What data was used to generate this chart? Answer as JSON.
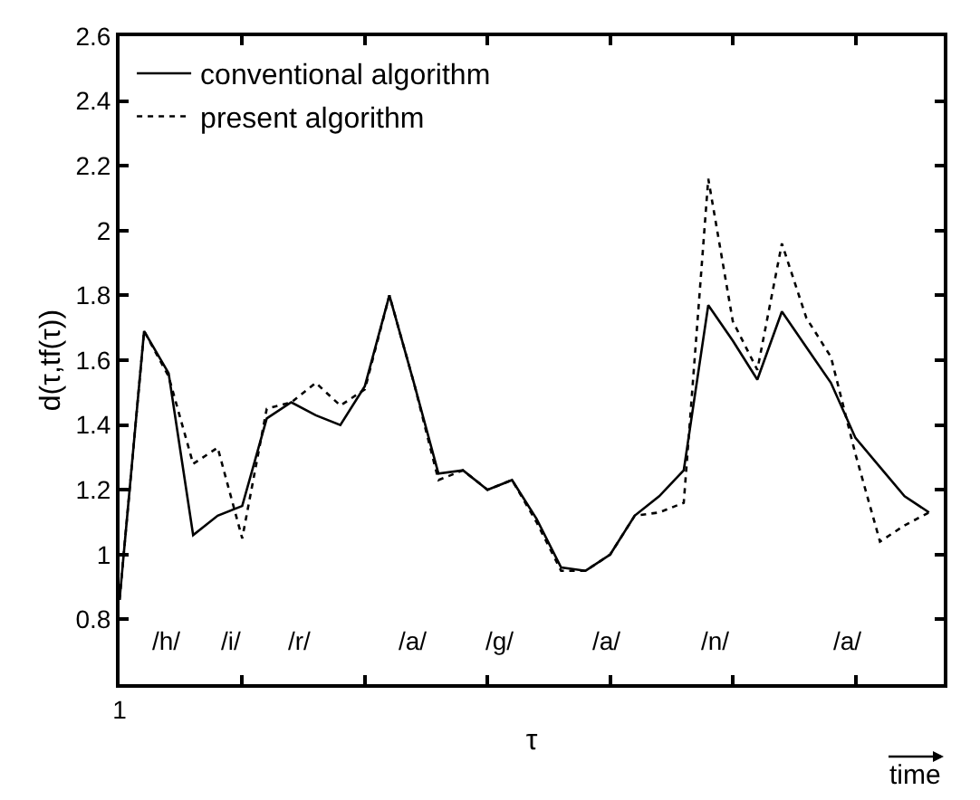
{
  "chart_data": {
    "type": "line",
    "xlabel": "τ",
    "ylabel": "d(τ,tf(τ))",
    "categories": [
      "1",
      null,
      null,
      null,
      null,
      null,
      null,
      null,
      null,
      null,
      null,
      null,
      null,
      null,
      null,
      null,
      null,
      null,
      null,
      null,
      null,
      null,
      null,
      null,
      null,
      null,
      null,
      null,
      null,
      null,
      null,
      null,
      null,
      null
    ],
    "series": [
      {
        "name": "conventional algorithm",
        "color": "#000000",
        "line_style": "solid",
        "values": [
          0.86,
          1.69,
          1.56,
          1.06,
          1.12,
          1.15,
          1.42,
          1.47,
          1.43,
          1.4,
          1.52,
          1.8,
          1.53,
          1.25,
          1.26,
          1.2,
          1.23,
          1.11,
          0.96,
          0.95,
          1.0,
          1.12,
          1.18,
          1.26,
          1.77,
          1.66,
          1.54,
          1.75,
          1.64,
          1.53,
          1.36,
          1.27,
          1.18,
          1.13
        ]
      },
      {
        "name": "present algorithm",
        "color": "#000000",
        "line_style": "dotted",
        "values": [
          0.86,
          1.69,
          1.55,
          1.28,
          1.33,
          1.05,
          1.45,
          1.47,
          1.53,
          1.46,
          1.51,
          1.8,
          1.53,
          1.23,
          1.26,
          1.2,
          1.23,
          1.1,
          0.95,
          0.95,
          1.0,
          1.12,
          1.13,
          1.16,
          2.16,
          1.72,
          1.57,
          1.96,
          1.73,
          1.61,
          1.31,
          1.04,
          1.09,
          1.13
        ]
      }
    ],
    "ylim": [
      0.6,
      2.6
    ],
    "yticks": [
      0.8,
      1,
      1.2,
      1.4,
      1.6,
      1.8,
      2,
      2.2,
      2.4,
      2.6
    ],
    "annotations": [
      "/h/",
      "/i/",
      "/r/",
      "/a/",
      "/g/",
      "/a/",
      "/n/",
      "/a/",
      "time"
    ],
    "legend": "top left",
    "marker": "none"
  }
}
